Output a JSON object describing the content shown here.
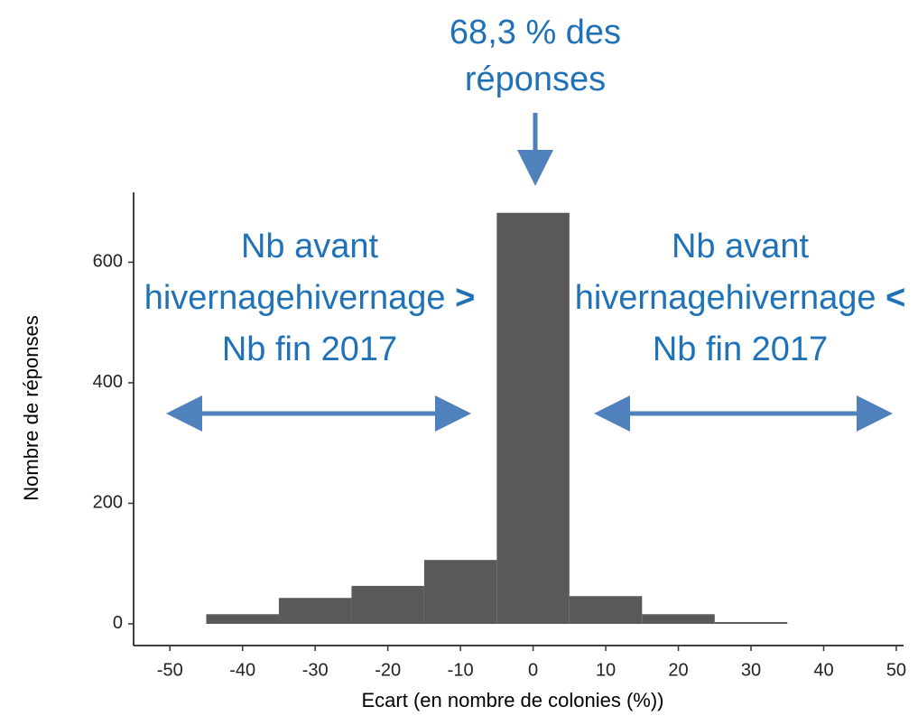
{
  "chart_data": {
    "type": "histogram",
    "bins": [
      -45,
      -35,
      -25,
      -15,
      -5,
      5,
      15,
      25,
      35
    ],
    "counts": [
      16,
      43,
      63,
      106,
      682,
      46,
      16,
      3
    ],
    "color": "#595959",
    "x_label": "Ecart (en nombre de colonies (%))",
    "y_label": "Nombre de réponses",
    "xlim": [
      -55,
      51
    ],
    "xticks": [
      -50,
      -40,
      -30,
      -20,
      -10,
      0,
      10,
      20,
      30,
      40,
      50
    ],
    "ylim": [
      -36,
      716
    ],
    "yticks": [
      0,
      200,
      400,
      600
    ],
    "annotations": {
      "center": [
        "68,3 % des",
        "réponses"
      ],
      "left": {
        "lines": [
          "Nb avant",
          "hivernage",
          "Nb fin 2017"
        ],
        "symbol": ">"
      },
      "right": {
        "lines": [
          "Nb avant",
          "hivernage",
          "Nb fin 2017"
        ],
        "symbol": "<"
      }
    }
  }
}
